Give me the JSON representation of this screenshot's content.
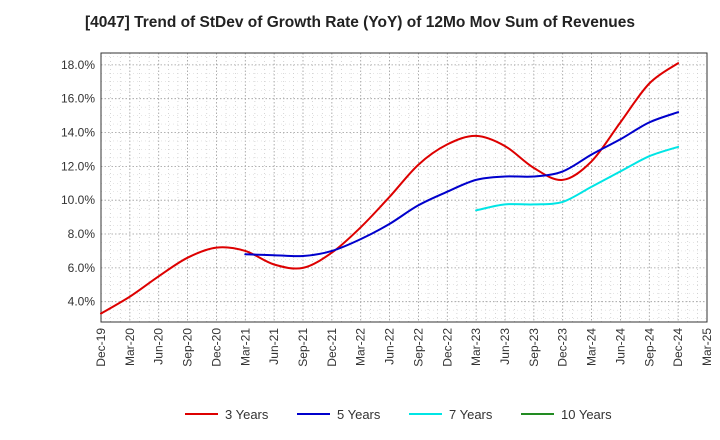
{
  "chart_data": {
    "type": "line",
    "title": "[4047]  Trend of StDev of Growth Rate (YoY) of 12Mo Mov Sum of Revenues",
    "xlabel": "",
    "ylabel": "",
    "x_ticks": [
      "Dec-19",
      "Mar-20",
      "Jun-20",
      "Sep-20",
      "Dec-20",
      "Mar-21",
      "Jun-21",
      "Sep-21",
      "Dec-21",
      "Mar-22",
      "Jun-22",
      "Sep-22",
      "Dec-22",
      "Mar-23",
      "Jun-23",
      "Sep-23",
      "Dec-23",
      "Mar-24",
      "Jun-24",
      "Sep-24",
      "Dec-24",
      "Mar-25"
    ],
    "y_ticks": [
      4.0,
      6.0,
      8.0,
      10.0,
      12.0,
      14.0,
      16.0,
      18.0
    ],
    "y_tick_labels": [
      "4.0%",
      "6.0%",
      "8.0%",
      "10.0%",
      "12.0%",
      "14.0%",
      "16.0%",
      "18.0%"
    ],
    "ylim": [
      2.8,
      18.7
    ],
    "xlim": [
      0,
      21
    ],
    "grid": true,
    "legend_position": "bottom",
    "series": [
      {
        "name": "3 Years",
        "color": "#dd0000",
        "points": [
          [
            0,
            3.3
          ],
          [
            1,
            4.3
          ],
          [
            2,
            5.5
          ],
          [
            3,
            6.6
          ],
          [
            4,
            7.2
          ],
          [
            5,
            7.0
          ],
          [
            6,
            6.2
          ],
          [
            7,
            6.0
          ],
          [
            8,
            6.9
          ],
          [
            9,
            8.4
          ],
          [
            10,
            10.2
          ],
          [
            11,
            12.1
          ],
          [
            12,
            13.3
          ],
          [
            13,
            13.8
          ],
          [
            14,
            13.2
          ],
          [
            15,
            11.9
          ],
          [
            16,
            11.2
          ],
          [
            17,
            12.3
          ],
          [
            18,
            14.6
          ],
          [
            19,
            16.9
          ],
          [
            20,
            18.1
          ]
        ]
      },
      {
        "name": "5 Years",
        "color": "#0000cc",
        "points": [
          [
            5,
            6.8
          ],
          [
            6,
            6.75
          ],
          [
            7,
            6.7
          ],
          [
            8,
            7.0
          ],
          [
            9,
            7.7
          ],
          [
            10,
            8.6
          ],
          [
            11,
            9.7
          ],
          [
            12,
            10.5
          ],
          [
            13,
            11.2
          ],
          [
            14,
            11.4
          ],
          [
            15,
            11.4
          ],
          [
            16,
            11.7
          ],
          [
            17,
            12.7
          ],
          [
            18,
            13.6
          ],
          [
            19,
            14.6
          ],
          [
            20,
            15.2
          ]
        ]
      },
      {
        "name": "7 Years",
        "color": "#00e5e5",
        "points": [
          [
            13,
            9.4
          ],
          [
            14,
            9.75
          ],
          [
            15,
            9.75
          ],
          [
            16,
            9.9
          ],
          [
            17,
            10.8
          ],
          [
            18,
            11.7
          ],
          [
            19,
            12.6
          ],
          [
            20,
            13.15
          ]
        ]
      },
      {
        "name": "10 Years",
        "color": "#228b22",
        "points": []
      }
    ]
  }
}
